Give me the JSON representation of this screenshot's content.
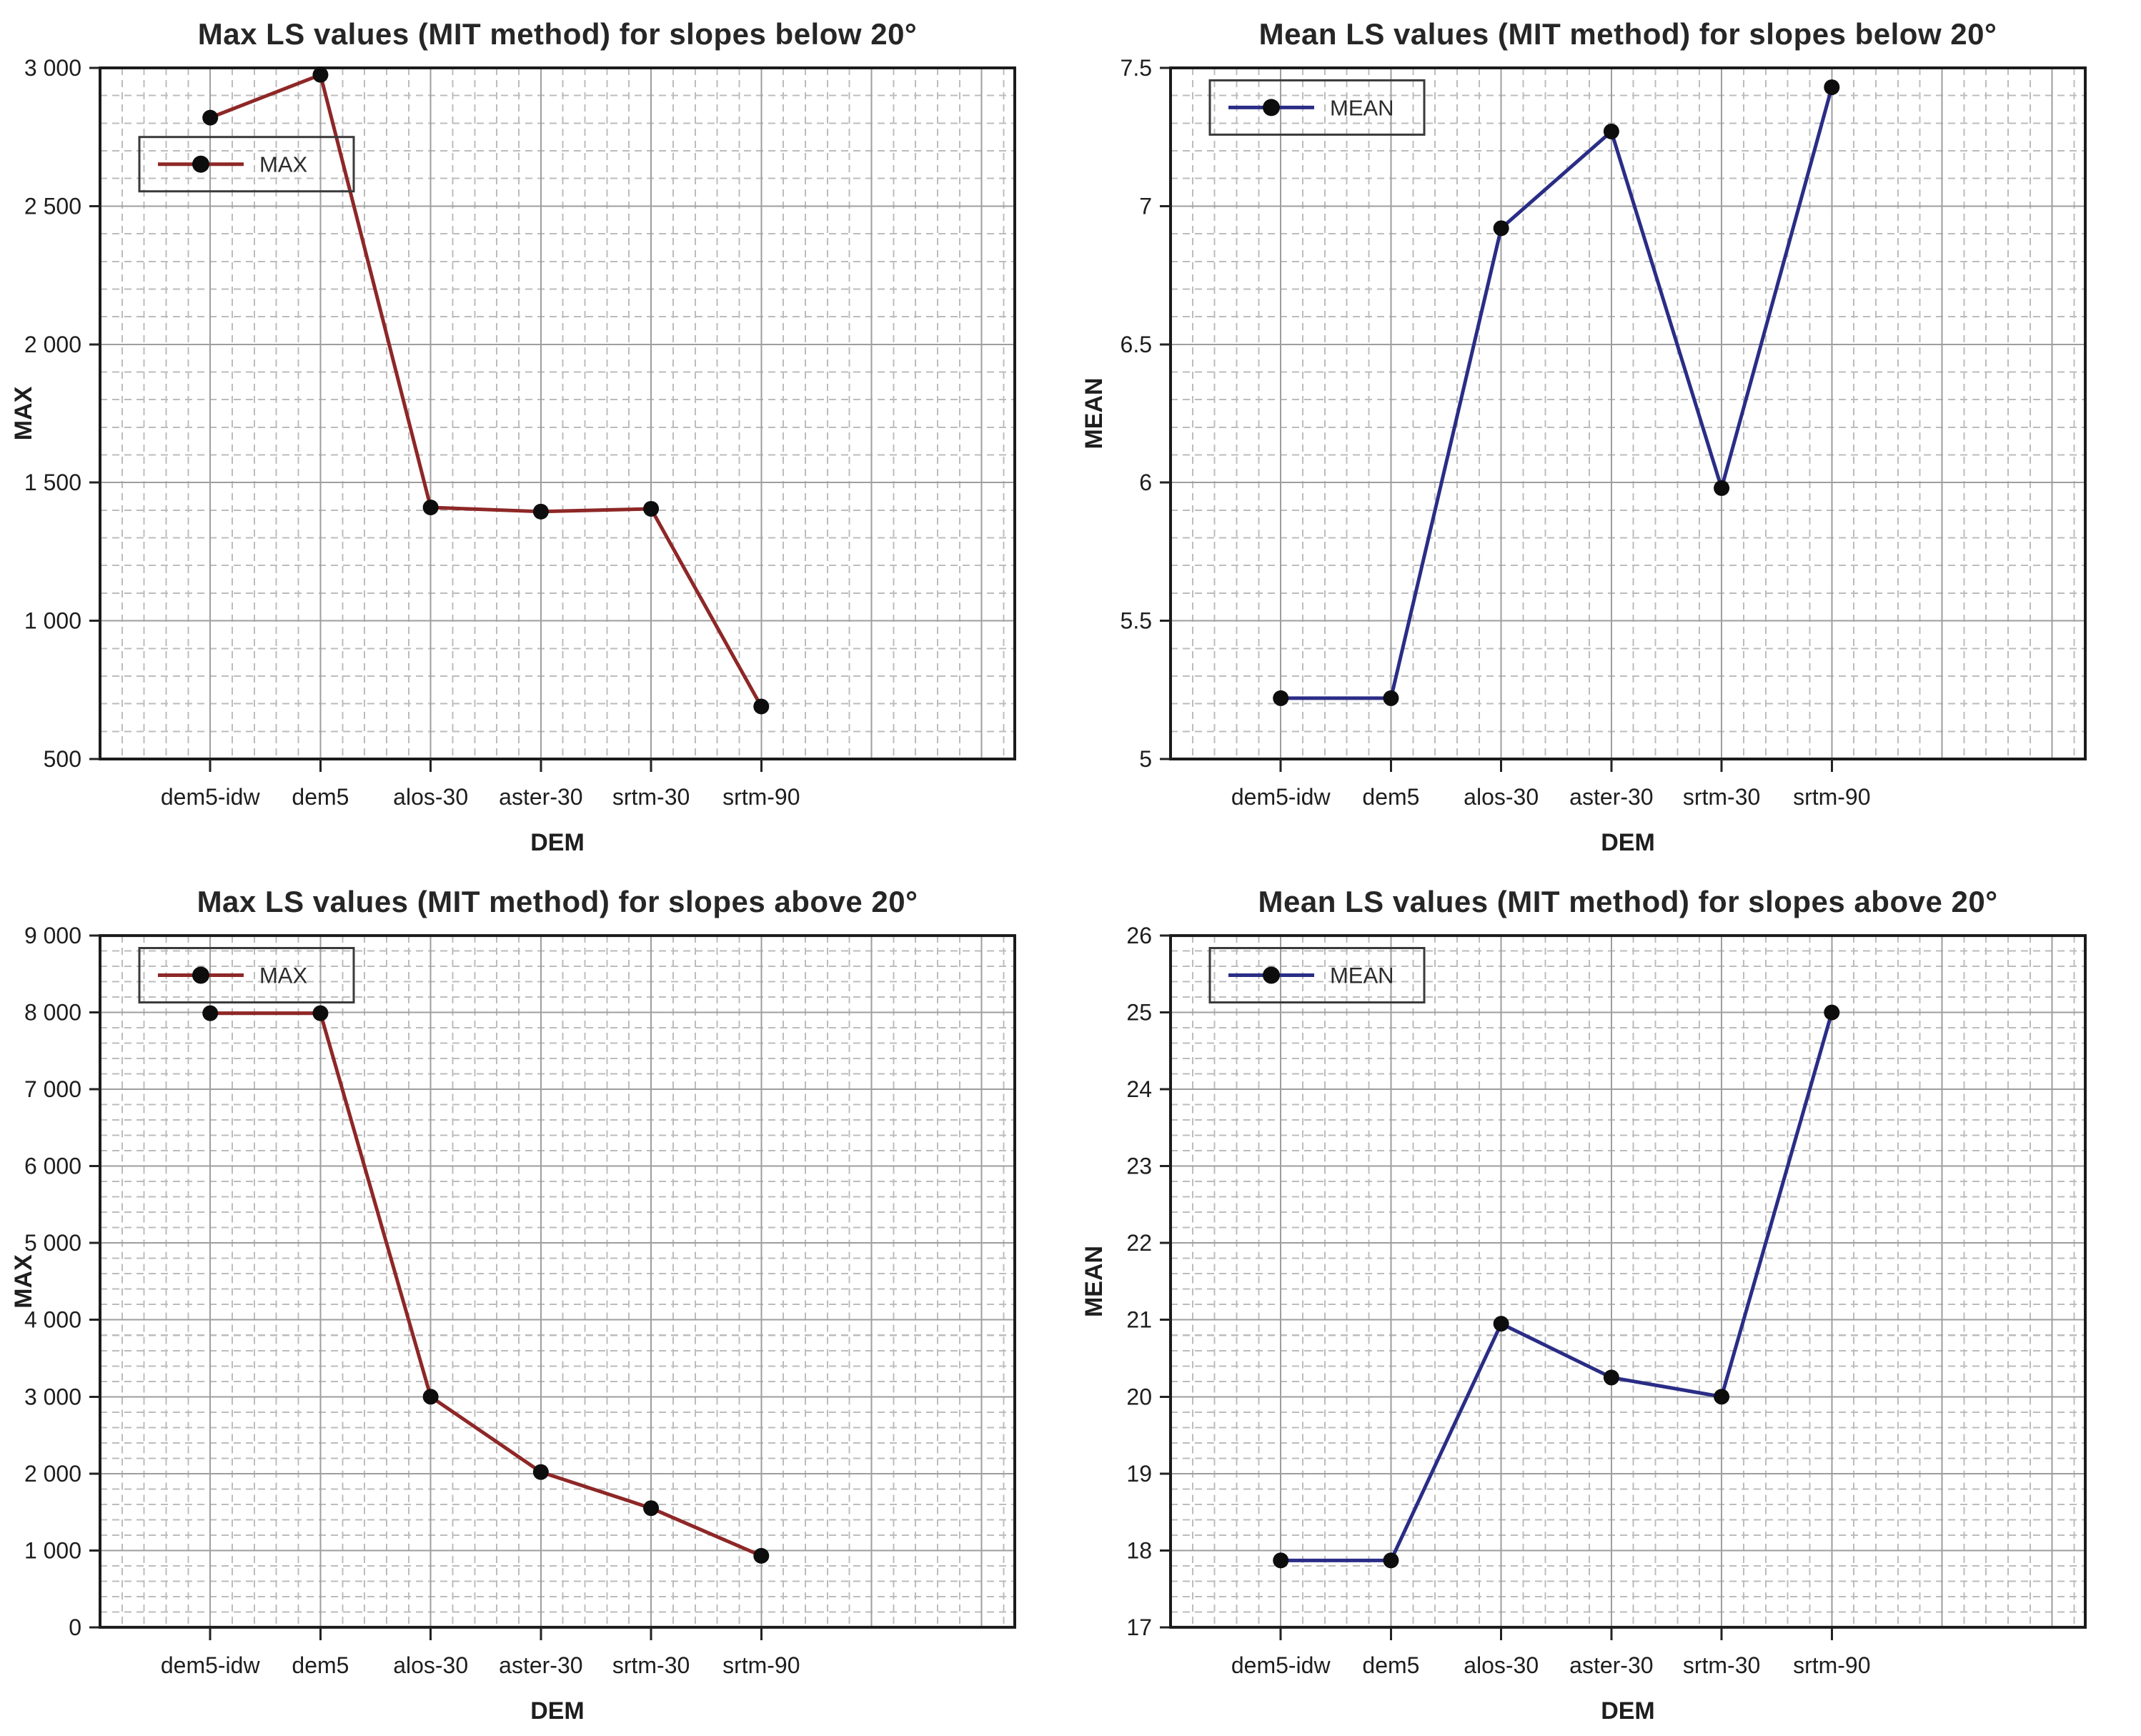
{
  "figure": {
    "background": "#ffffff",
    "text_color": "#1e1e1e",
    "title_color": "#262626",
    "grid_major_color": "#9e9e9e",
    "grid_minor_color": "#bcbcbc",
    "border_color": "#1b1b1b",
    "marker_color": "#0d0d0d"
  },
  "chart_data": [
    {
      "type": "line",
      "title": "Max LS values (MIT method) for slopes below 20°",
      "xlabel": "DEM",
      "ylabel": "MAX",
      "categories": [
        "dem5-idw",
        "dem5",
        "alos-30",
        "aster-30",
        "srtm-30",
        "srtm-90"
      ],
      "series": [
        {
          "name": "MAX",
          "color": "#8e2727",
          "values": [
            2820,
            2975,
            1410,
            1395,
            1405,
            690
          ]
        }
      ],
      "ylim": [
        500,
        3000
      ],
      "yticks": [
        500,
        1000,
        1500,
        2000,
        2500,
        3000
      ],
      "ytick_labels": [
        "500",
        "1 000",
        "1 500",
        "2 000",
        "2 500",
        "3 000"
      ],
      "minor_y_step": 100,
      "grid": true,
      "legend": {
        "position": "top-left",
        "entries": [
          "MAX"
        ]
      }
    },
    {
      "type": "line",
      "title": "Mean LS values (MIT method) for slopes below 20°",
      "xlabel": "DEM",
      "ylabel": "MEAN",
      "categories": [
        "dem5-idw",
        "dem5",
        "alos-30",
        "aster-30",
        "srtm-30",
        "srtm-90"
      ],
      "series": [
        {
          "name": "MEAN",
          "color": "#2a2d85",
          "values": [
            5.22,
            5.22,
            6.92,
            7.27,
            5.98,
            7.43
          ]
        }
      ],
      "ylim": [
        5,
        7.5
      ],
      "yticks": [
        5,
        5.5,
        6,
        6.5,
        7,
        7.5
      ],
      "ytick_labels": [
        "5",
        "5.5",
        "6",
        "6.5",
        "7",
        "7.5"
      ],
      "minor_y_step": 0.1,
      "grid": true,
      "legend": {
        "position": "top-left",
        "entries": [
          "MEAN"
        ]
      }
    },
    {
      "type": "line",
      "title": "Max LS values (MIT method) for slopes above 20°",
      "xlabel": "DEM",
      "ylabel": "MAX",
      "categories": [
        "dem5-idw",
        "dem5",
        "alos-30",
        "aster-30",
        "srtm-30",
        "srtm-90"
      ],
      "series": [
        {
          "name": "MAX",
          "color": "#8e2727",
          "values": [
            7990,
            7990,
            3000,
            2020,
            1550,
            930
          ]
        }
      ],
      "ylim": [
        0,
        9000
      ],
      "yticks": [
        0,
        1000,
        2000,
        3000,
        4000,
        5000,
        6000,
        7000,
        8000,
        9000
      ],
      "ytick_labels": [
        "0",
        "1 000",
        "2 000",
        "3 000",
        "4 000",
        "5 000",
        "6 000",
        "7 000",
        "8 000",
        "9 000"
      ],
      "minor_y_step": 200,
      "grid": true,
      "legend": {
        "position": "top-left",
        "entries": [
          "MAX"
        ]
      }
    },
    {
      "type": "line",
      "title": "Mean LS values (MIT method) for slopes above 20°",
      "xlabel": "DEM",
      "ylabel": "MEAN",
      "categories": [
        "dem5-idw",
        "dem5",
        "alos-30",
        "aster-30",
        "srtm-30",
        "srtm-90"
      ],
      "series": [
        {
          "name": "MEAN",
          "color": "#2a2d85",
          "values": [
            17.87,
            17.87,
            20.95,
            20.25,
            20,
            25
          ]
        }
      ],
      "ylim": [
        17,
        26
      ],
      "yticks": [
        17,
        18,
        19,
        20,
        21,
        22,
        23,
        24,
        25,
        26
      ],
      "ytick_labels": [
        "17",
        "18",
        "19",
        "20",
        "21",
        "22",
        "23",
        "24",
        "25",
        "26"
      ],
      "minor_y_step": 0.2,
      "grid": true,
      "legend": {
        "position": "top-left",
        "entries": [
          "MEAN"
        ]
      }
    }
  ]
}
